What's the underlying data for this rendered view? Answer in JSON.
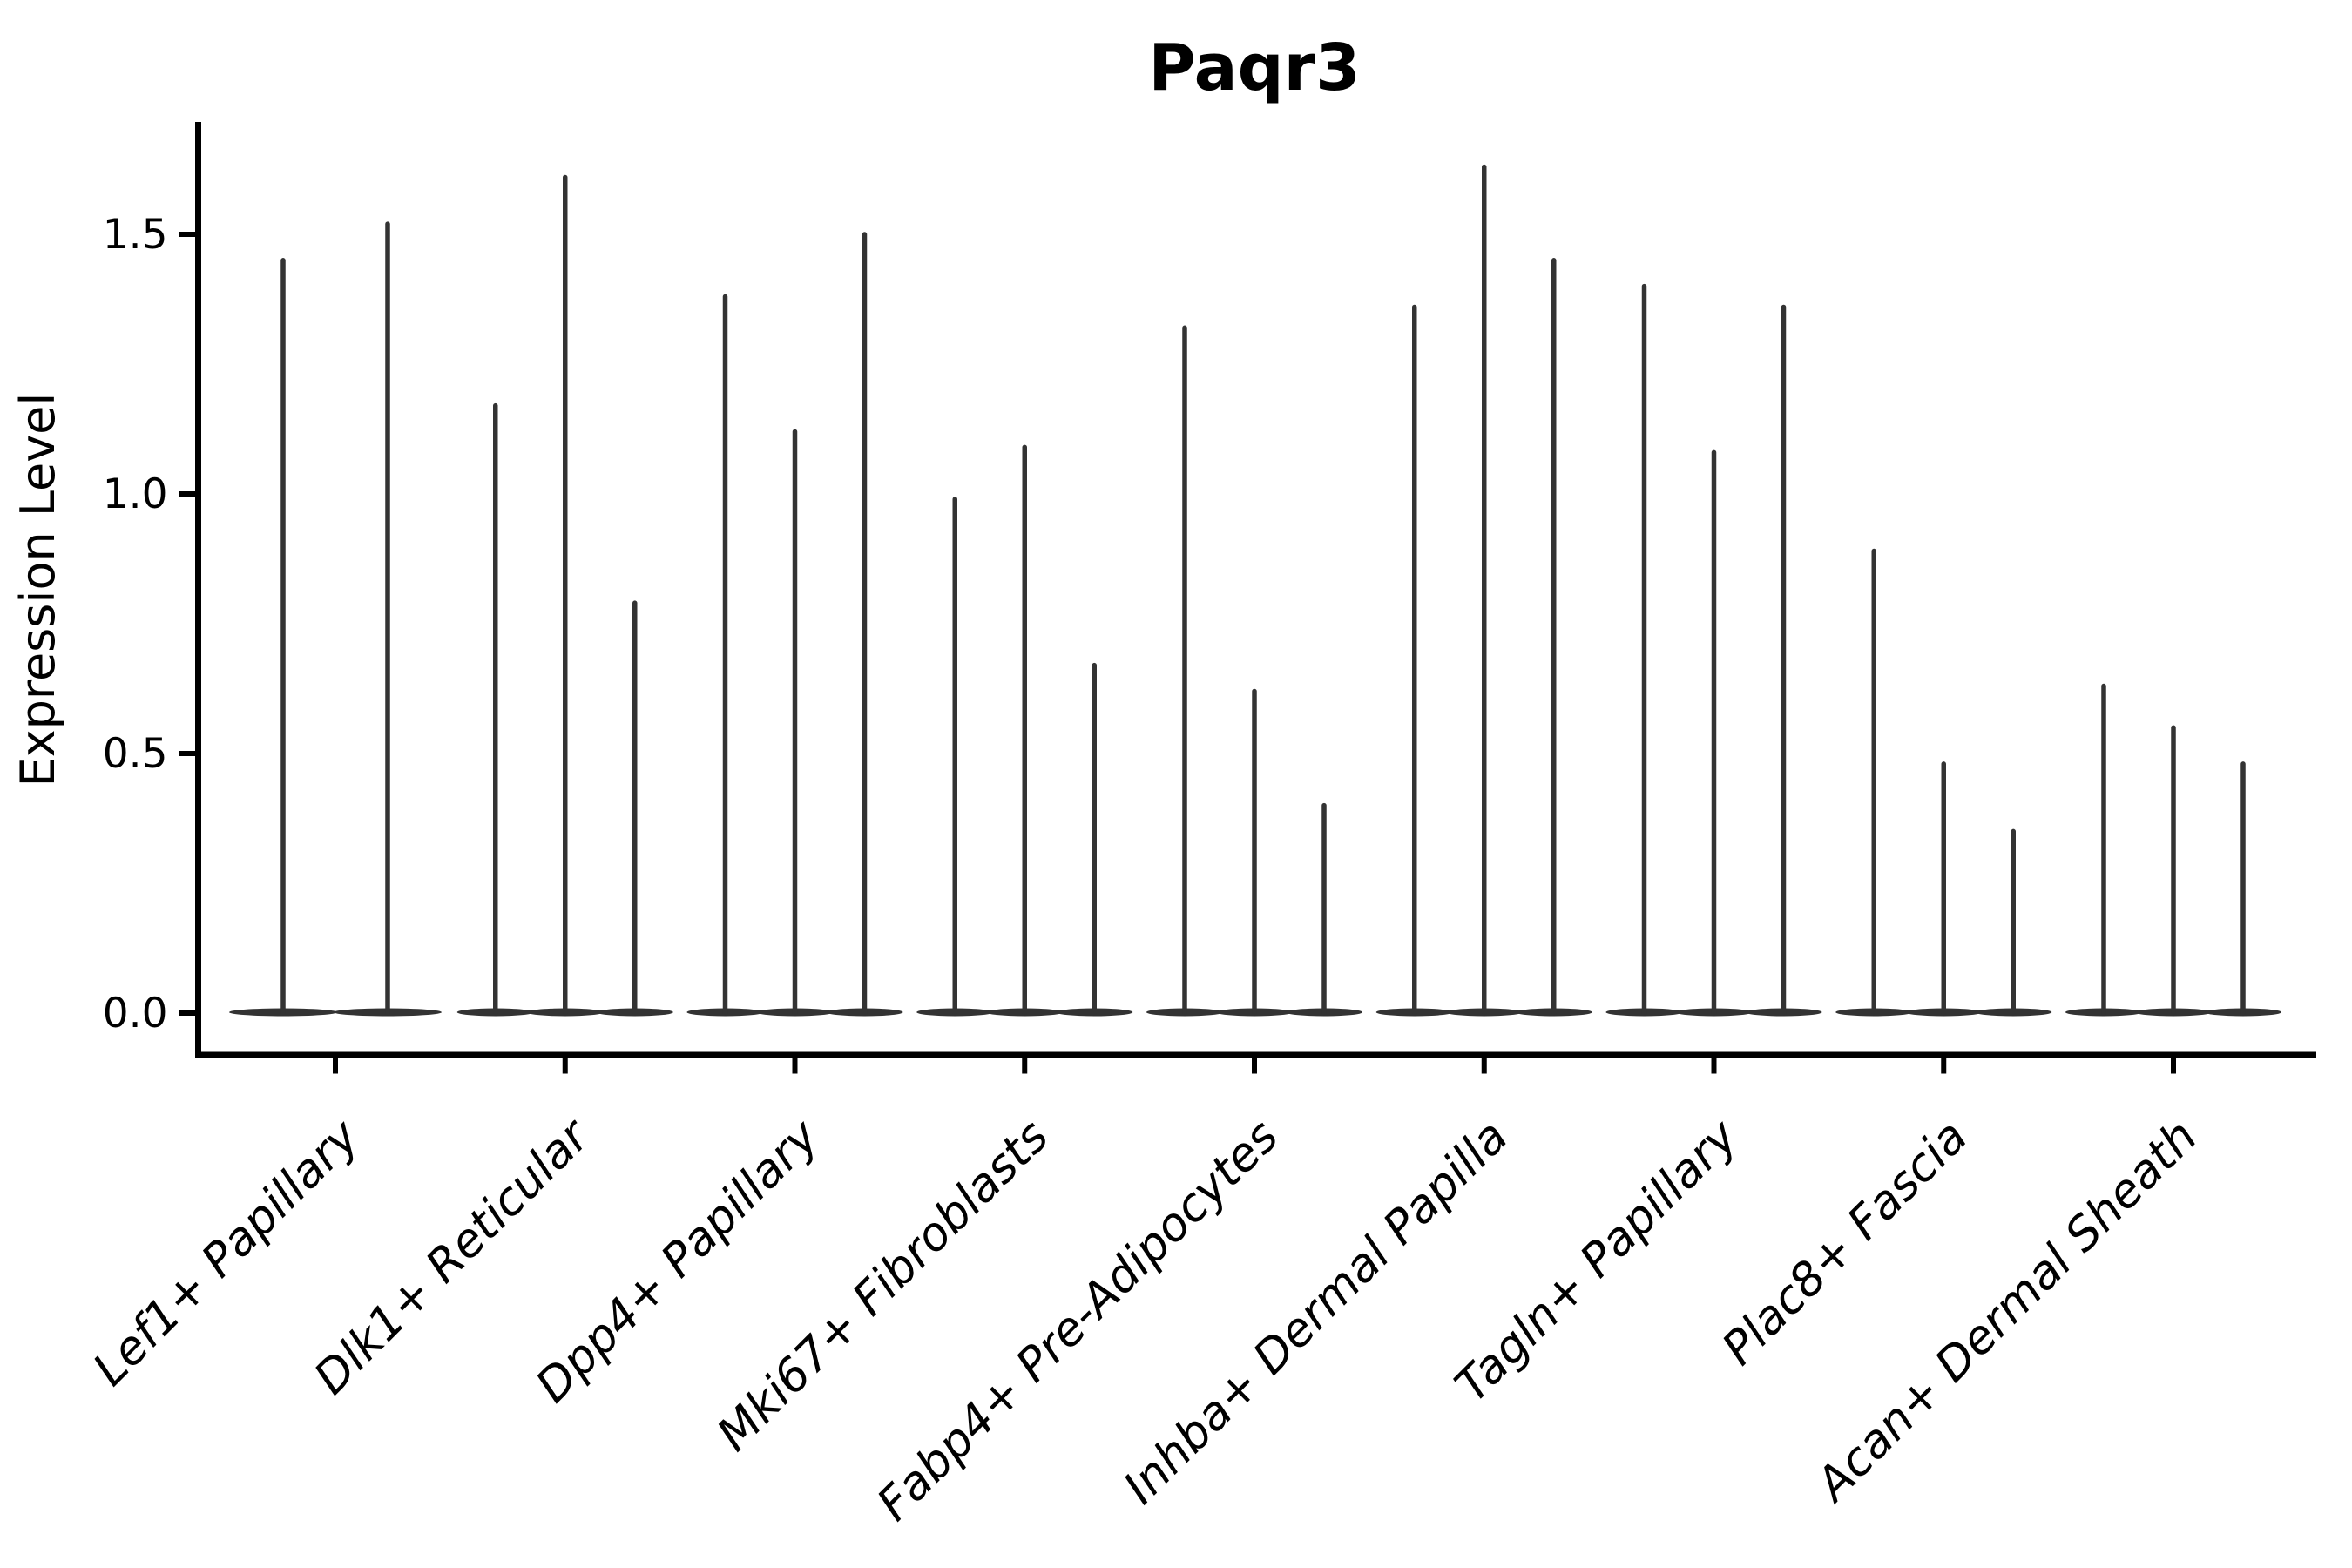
{
  "chart_data": {
    "type": "violin",
    "title": "Paqr3",
    "ylabel": "Expression Level",
    "xlabel": "",
    "ylim": [
      -0.08,
      1.72
    ],
    "baseline_value": 0.0,
    "grid": "off",
    "legend": "none",
    "y_ticks": [
      {
        "value": 0.0,
        "label": "0.0"
      },
      {
        "value": 0.5,
        "label": "0.5"
      },
      {
        "value": 1.0,
        "label": "1.0"
      },
      {
        "value": 1.5,
        "label": "1.5"
      }
    ],
    "categories": [
      "Lef1+ Papillary",
      "Dlk1+ Reticular",
      "Dpp4+ Papillary",
      "Mki67+ Fibroblasts",
      "Fabp4+ Pre-Adipocytes",
      "Inhba+ Dermal Papilla",
      "Tagln+ Papillary",
      "Plac8+ Fascia",
      "Acan+ Dermal Sheath"
    ],
    "groups": [
      {
        "category": "Lef1+ Papillary",
        "violin_peaks": [
          1.45,
          1.52
        ]
      },
      {
        "category": "Dlk1+ Reticular",
        "violin_peaks": [
          1.17,
          1.61,
          0.79
        ]
      },
      {
        "category": "Dpp4+ Papillary",
        "violin_peaks": [
          1.38,
          1.12,
          1.5
        ]
      },
      {
        "category": "Mki67+ Fibroblasts",
        "violin_peaks": [
          0.99,
          1.09,
          0.67
        ]
      },
      {
        "category": "Fabp4+ Pre-Adipocytes",
        "violin_peaks": [
          1.32,
          0.62,
          0.4
        ]
      },
      {
        "category": "Inhba+ Dermal Papilla",
        "violin_peaks": [
          1.36,
          1.63,
          1.45
        ]
      },
      {
        "category": "Tagln+ Papillary",
        "violin_peaks": [
          1.4,
          1.08,
          1.36
        ]
      },
      {
        "category": "Plac8+ Fascia",
        "violin_peaks": [
          0.89,
          0.48,
          0.35
        ]
      },
      {
        "category": "Acan+ Dermal Sheath",
        "violin_peaks": [
          0.63,
          0.55,
          0.48
        ]
      }
    ],
    "colors": {
      "violin": "#333333",
      "axis": "#000000",
      "text": "#000000",
      "background": "#ffffff"
    }
  }
}
